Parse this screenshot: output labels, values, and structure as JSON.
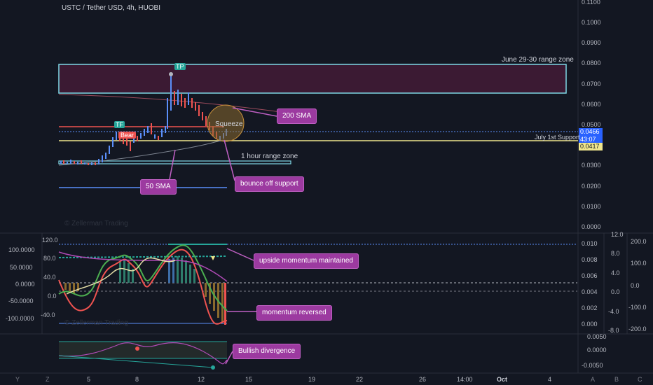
{
  "header": {
    "symbol_line": "USTC / Tether USD, 4h, HUOBI"
  },
  "watermark": "© Zellerman Trading",
  "main_axis": {
    "labels": [
      "0.1100",
      "0.1000",
      "0.0900",
      "0.0800",
      "0.0700",
      "0.0600",
      "0.0500",
      "0.0400",
      "0.0300",
      "0.0200",
      "0.0100",
      "0.0000"
    ],
    "last_price": "0.0466",
    "countdown": "43:07",
    "support_price": "0.0417"
  },
  "annotations": {
    "range_zone": "June 29-30 range zone",
    "sma200": "200 SMA",
    "squeeze": "Squeeze",
    "support": "July 1st Support",
    "hour_zone": "1 hour range zone",
    "sma50": "50 SMA",
    "bounce": "bounce off support",
    "tp": "TP",
    "tf": "TF",
    "bear": "Bear",
    "momentum_up": "upside momentum maintained",
    "momentum_rev": "momentum reversed",
    "bull_div": "Bullish divergence"
  },
  "osc_left_axis": [
    "100.0000",
    "50.0000",
    "0.0000",
    "-50.0000",
    "-100.0000"
  ],
  "osc_inner_axis": [
    "120.0",
    "80.0",
    "40.0",
    "0.0",
    "-40.0"
  ],
  "osc_right_axis": [
    "0.010",
    "0.008",
    "0.006",
    "0.004",
    "0.002",
    "0.000"
  ],
  "osc_far_axis": [
    "12.0",
    "8.0",
    "4.0",
    "0.0",
    "-4.0",
    "-8.0"
  ],
  "osc_far2_axis": [
    "200.0",
    "100.0",
    "0.0",
    "-100.0",
    "-200.0"
  ],
  "div_axis": [
    "0.0050",
    "0.0000",
    "-0.0050"
  ],
  "time_axis": [
    "5",
    "8",
    "12",
    "15",
    "19",
    "22",
    "26",
    "14:00",
    "Oct",
    "4"
  ],
  "footer": {
    "left_btns": [
      "Y",
      "Z"
    ],
    "right_btns": [
      "A",
      "B",
      "C"
    ]
  },
  "colors": {
    "bg": "#131722",
    "up": "#5b8ff9",
    "down": "#ef5350",
    "support": "#f0e68c",
    "zone": "#7fd8e6",
    "callout": "#9c3aa0"
  }
}
